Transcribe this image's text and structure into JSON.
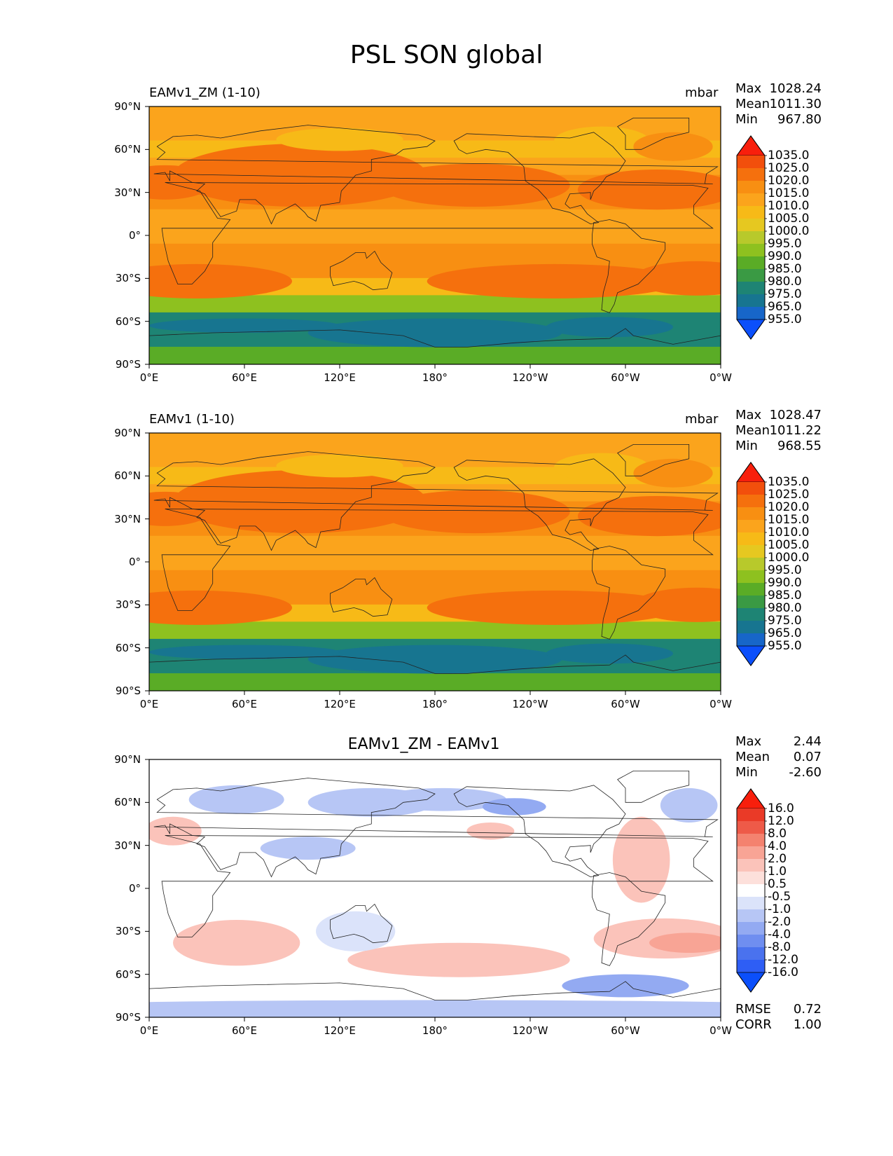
{
  "title": "PSL SON global",
  "chart_data": [
    {
      "type": "heatmap",
      "panel": "test",
      "left_title": "EAMv1_ZM (1-10)",
      "units": "mbar",
      "stats": {
        "max": "1028.24",
        "mean": "1011.30",
        "min": "967.80"
      },
      "xticks": [
        "0°E",
        "60°E",
        "120°E",
        "180°",
        "120°W",
        "60°W",
        "0°W"
      ],
      "yticks": [
        "90°N",
        "60°N",
        "30°N",
        "0°",
        "30°S",
        "60°S",
        "90°S"
      ],
      "xlim": [
        0,
        360
      ],
      "ylim": [
        -90,
        90
      ],
      "colorbar": {
        "levels": [
          "955.0",
          "965.0",
          "975.0",
          "980.0",
          "985.0",
          "990.0",
          "995.0",
          "1000.0",
          "1005.0",
          "1010.0",
          "1015.0",
          "1020.0",
          "1025.0",
          "1035.0"
        ],
        "colors": [
          "#0b4ffb",
          "#1766c9",
          "#177590",
          "#1e8474",
          "#3a9a44",
          "#5aac26",
          "#8ec11f",
          "#b8c92b",
          "#e6c820",
          "#f7ba17",
          "#fba41c",
          "#f88f12",
          "#f5700d",
          "#f24f0c",
          "#f81f0c"
        ]
      },
      "latitude_bands_mbar": [
        1010,
        1014,
        1008,
        1012,
        1016,
        1015,
        1012,
        1013,
        1019,
        1016,
        1005,
        990,
        978,
        975,
        985
      ]
    },
    {
      "type": "heatmap",
      "panel": "reference",
      "left_title": "EAMv1 (1-10)",
      "units": "mbar",
      "stats": {
        "max": "1028.47",
        "mean": "1011.22",
        "min": "968.55"
      },
      "xticks": [
        "0°E",
        "60°E",
        "120°E",
        "180°",
        "120°W",
        "60°W",
        "0°W"
      ],
      "yticks": [
        "90°N",
        "60°N",
        "30°N",
        "0°",
        "30°S",
        "60°S",
        "90°S"
      ],
      "xlim": [
        0,
        360
      ],
      "ylim": [
        -90,
        90
      ],
      "colorbar": {
        "levels": [
          "955.0",
          "965.0",
          "975.0",
          "980.0",
          "985.0",
          "990.0",
          "995.0",
          "1000.0",
          "1005.0",
          "1010.0",
          "1015.0",
          "1020.0",
          "1025.0",
          "1035.0"
        ],
        "colors": [
          "#0b4ffb",
          "#1766c9",
          "#177590",
          "#1e8474",
          "#3a9a44",
          "#5aac26",
          "#8ec11f",
          "#b8c92b",
          "#e6c820",
          "#f7ba17",
          "#fba41c",
          "#f88f12",
          "#f5700d",
          "#f24f0c",
          "#f81f0c"
        ]
      },
      "latitude_bands_mbar": [
        1012,
        1014,
        1009,
        1013,
        1017,
        1015,
        1012,
        1013,
        1019,
        1016,
        1005,
        990,
        978,
        975,
        985
      ]
    },
    {
      "type": "heatmap",
      "panel": "difference",
      "center_title": "EAMv1_ZM - EAMv1",
      "stats": {
        "max": "2.44",
        "mean": "0.07",
        "min": "-2.60"
      },
      "xticks": [
        "0°E",
        "60°E",
        "120°E",
        "180°",
        "120°W",
        "60°W",
        "0°W"
      ],
      "yticks": [
        "90°N",
        "60°N",
        "30°N",
        "0°",
        "30°S",
        "60°S",
        "90°S"
      ],
      "xlim": [
        0,
        360
      ],
      "ylim": [
        -90,
        90
      ],
      "colorbar": {
        "levels": [
          "-16.0",
          "-12.0",
          "-8.0",
          "-4.0",
          "-2.0",
          "-1.0",
          "-0.5",
          "0.5",
          "1.0",
          "2.0",
          "4.0",
          "8.0",
          "12.0",
          "16.0"
        ],
        "colors": [
          "#0b4ffb",
          "#2e5ef5",
          "#4a72ee",
          "#6f8ef0",
          "#93aaf2",
          "#b7c6f5",
          "#dbe3fa",
          "#ffffff",
          "#fde0db",
          "#fbc3ba",
          "#f8a495",
          "#f4826f",
          "#ee5a48",
          "#ea3a27",
          "#f81f0c"
        ]
      },
      "rmse": "0.72",
      "corr": "1.00"
    }
  ],
  "labels": {
    "max": "Max",
    "mean": "Mean",
    "min": "Min",
    "rmse": "RMSE",
    "corr": "CORR"
  }
}
